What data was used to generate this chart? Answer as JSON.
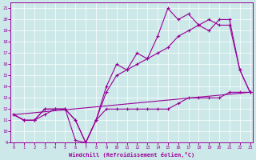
{
  "xlabel": "Windchill (Refroidissement éolien,°C)",
  "xlim": [
    -0.3,
    23.3
  ],
  "ylim": [
    9,
    21.5
  ],
  "xticks": [
    0,
    1,
    2,
    3,
    4,
    5,
    6,
    7,
    8,
    9,
    10,
    11,
    12,
    13,
    14,
    15,
    16,
    17,
    18,
    19,
    20,
    21,
    22,
    23
  ],
  "yticks": [
    9,
    10,
    11,
    12,
    13,
    14,
    15,
    16,
    17,
    18,
    19,
    20,
    21
  ],
  "line_color": "#990099",
  "bg_color": "#cce8e8",
  "line1_x": [
    0,
    1,
    2,
    3,
    4,
    5,
    6,
    7,
    8,
    9,
    10,
    11,
    12,
    13,
    14,
    15,
    16,
    17,
    18,
    19,
    20,
    21,
    22,
    23
  ],
  "line1_y": [
    11.5,
    11.0,
    11.0,
    11.5,
    12.0,
    12.0,
    9.2,
    9.0,
    11.0,
    12.0,
    12.0,
    12.0,
    12.0,
    12.0,
    12.0,
    12.0,
    12.5,
    13.0,
    13.0,
    13.0,
    13.0,
    13.5,
    13.5,
    13.5
  ],
  "line2_x": [
    0,
    1,
    2,
    3,
    4,
    5,
    6,
    7,
    8,
    9,
    10,
    11,
    12,
    13,
    14,
    15,
    16,
    17,
    18,
    19,
    20,
    21,
    22,
    23
  ],
  "line2_y": [
    11.5,
    11.0,
    11.0,
    12.0,
    12.0,
    12.0,
    11.0,
    9.0,
    11.0,
    13.5,
    15.0,
    15.5,
    16.0,
    16.5,
    17.0,
    17.5,
    18.5,
    19.0,
    19.5,
    20.0,
    19.5,
    19.5,
    15.5,
    13.5
  ],
  "line3_x": [
    0,
    1,
    2,
    3,
    4,
    5,
    6,
    7,
    8,
    9,
    10,
    11,
    12,
    13,
    14,
    15,
    16,
    17,
    18,
    19,
    20,
    21,
    22,
    23
  ],
  "line3_y": [
    11.5,
    11.0,
    11.0,
    12.0,
    12.0,
    12.0,
    11.0,
    9.0,
    11.0,
    14.0,
    16.0,
    15.5,
    17.0,
    16.5,
    18.5,
    21.0,
    20.0,
    20.5,
    19.5,
    19.0,
    20.0,
    20.0,
    15.5,
    13.5
  ],
  "line4_x": [
    0,
    23
  ],
  "line4_y": [
    11.5,
    13.5
  ]
}
